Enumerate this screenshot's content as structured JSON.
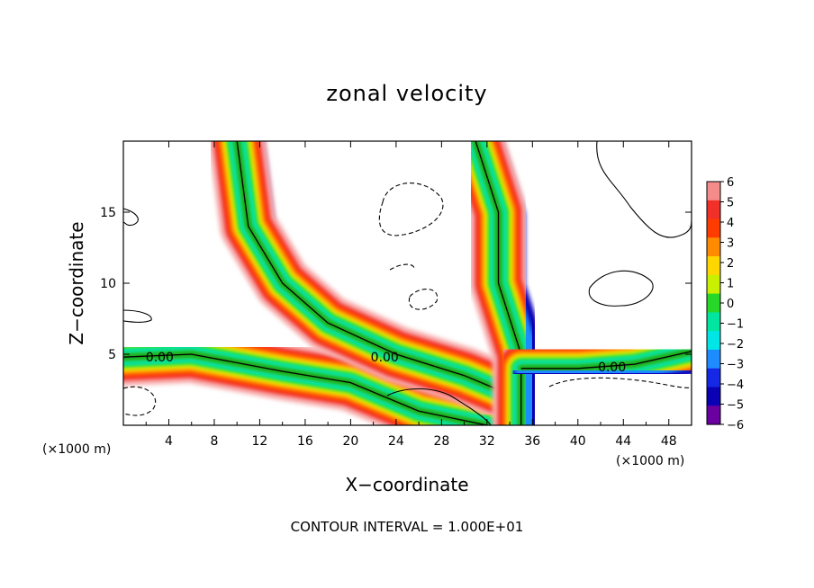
{
  "chart_data": {
    "type": "heatmap",
    "title": "zonal velocity",
    "xlabel": "X−coordinate",
    "ylabel": "Z−coordinate",
    "x_unit_note_left": "(×1000 m)",
    "x_unit_note_right": "(×1000 m)",
    "footer": "CONTOUR INTERVAL = 1.000E+01",
    "xlim": [
      0,
      50
    ],
    "ylim": [
      0,
      20
    ],
    "x_ticks": [
      "4",
      "8",
      "12",
      "16",
      "20",
      "24",
      "28",
      "32",
      "36",
      "40",
      "44",
      "48"
    ],
    "x_tick_values": [
      4,
      8,
      12,
      16,
      20,
      24,
      28,
      32,
      36,
      40,
      44,
      48
    ],
    "y_ticks": [
      "5",
      "10",
      "15"
    ],
    "y_tick_values": [
      5,
      10,
      15
    ],
    "colorbar": {
      "min": -6,
      "max": 6,
      "labels": [
        "6",
        "5",
        "4",
        "3",
        "2",
        "1",
        "0",
        "−1",
        "−2",
        "−3",
        "−4",
        "−5",
        "−6"
      ],
      "colors": [
        "#f58c8c",
        "#f2302a",
        "#ff3c00",
        "#ff8c00",
        "#ffd700",
        "#c8f000",
        "#28d828",
        "#00e6a0",
        "#00e6e6",
        "#1e8cff",
        "#1428e6",
        "#0a00b4",
        "#6a00a0"
      ]
    },
    "contour_labels": [
      {
        "text": "0.00",
        "x": 3.2,
        "z": 4.8
      },
      {
        "text": "0.00",
        "x": 23.0,
        "z": 4.8
      },
      {
        "text": "0.00",
        "x": 43.0,
        "z": 4.1
      }
    ],
    "bands": [
      {
        "name": "left-lower-jet",
        "path_x": [
          0,
          6,
          14,
          20,
          26,
          32
        ],
        "path_z": [
          4.8,
          5.0,
          3.8,
          3.0,
          1.0,
          0.0
        ]
      },
      {
        "name": "diagonal-jet",
        "path_x": [
          10,
          11,
          14,
          18,
          24,
          30,
          33
        ],
        "path_z": [
          20,
          14,
          10,
          7.2,
          5.0,
          3.5,
          2.5
        ]
      },
      {
        "name": "right-vertical-jet",
        "path_x": [
          31,
          33,
          33,
          35,
          35
        ],
        "path_z": [
          20,
          15,
          10,
          5,
          0
        ]
      },
      {
        "name": "right-lower-jet",
        "path_x": [
          35,
          40,
          45,
          50
        ],
        "path_z": [
          4.0,
          4.0,
          4.3,
          5.2
        ]
      }
    ]
  }
}
